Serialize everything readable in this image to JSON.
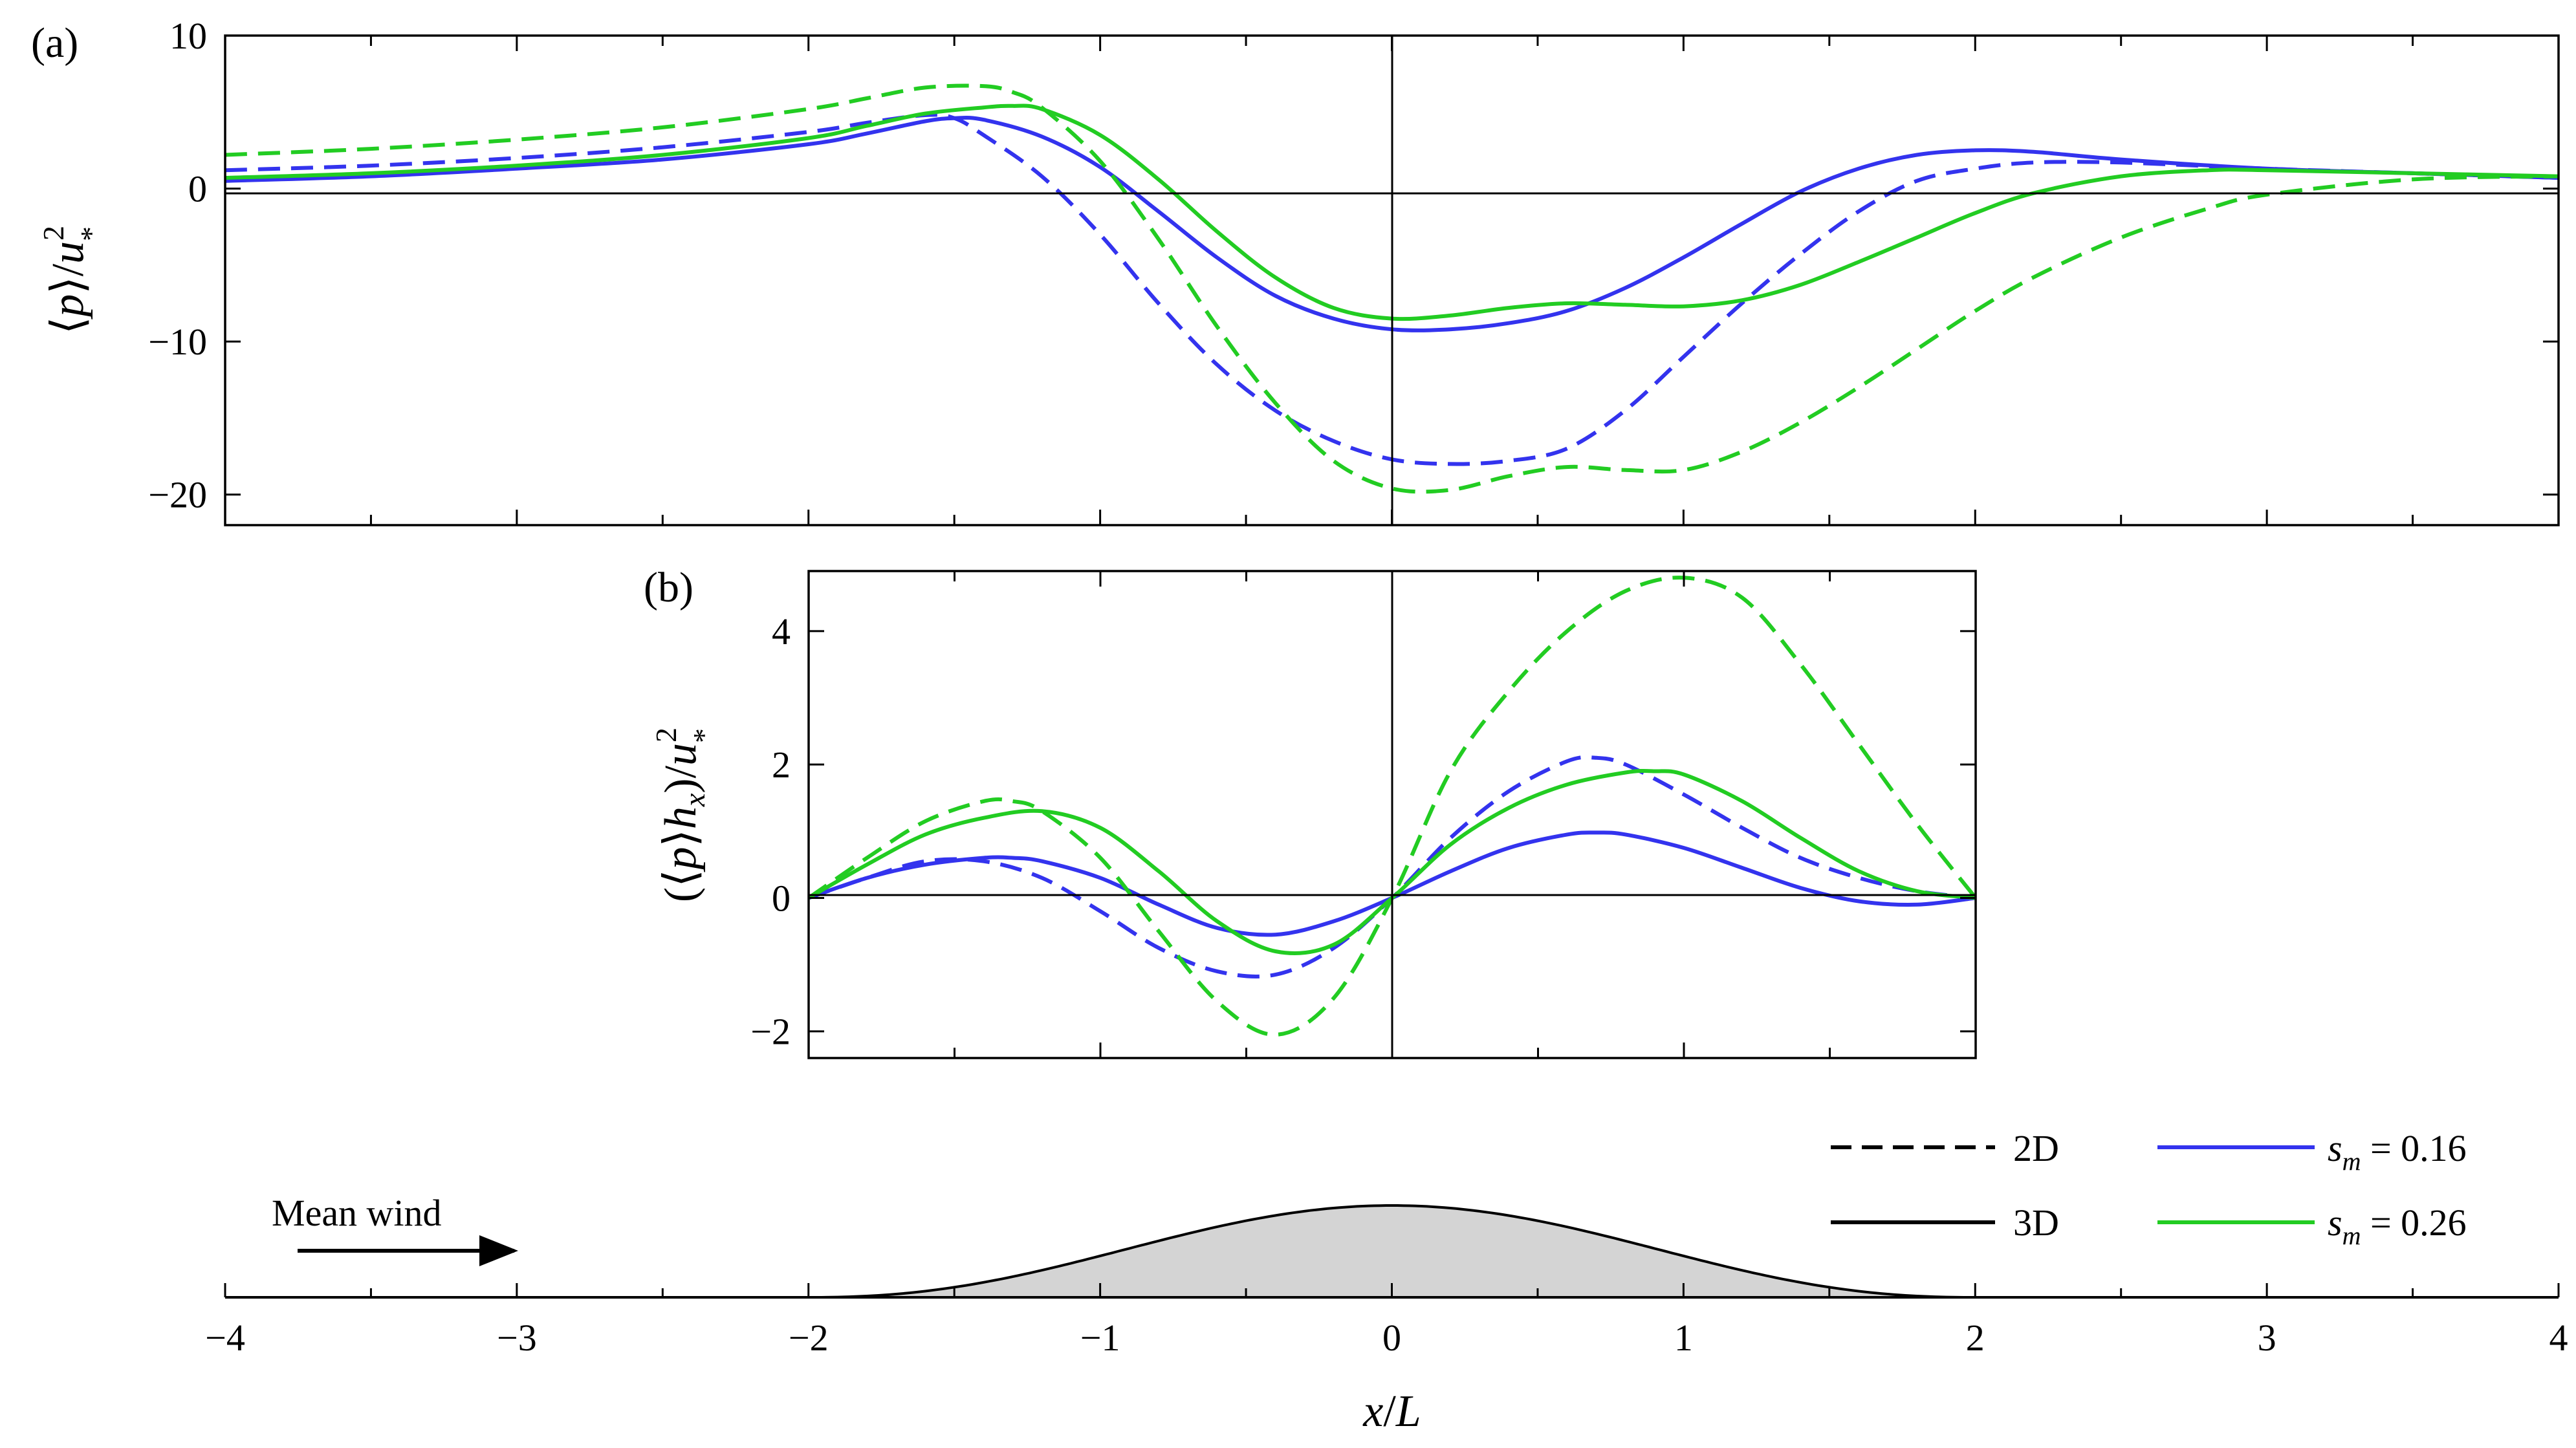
{
  "chart_data": [
    {
      "type": "line",
      "panel": "(a)",
      "xlabel": "x/L",
      "ylabel": "⟨p⟩/u*²",
      "xlim": [
        -4,
        4
      ],
      "ylim": [
        -22,
        10
      ],
      "yticks": [
        10,
        0,
        -10,
        -20
      ],
      "ytick_labels": [
        "10",
        "0",
        "−10",
        "−20"
      ],
      "series": [
        {
          "name": "2D, s_m = 0.16",
          "style": "dashed",
          "color": "#3333ee",
          "x": [
            -4,
            -3.5,
            -3,
            -2.5,
            -2,
            -1.8,
            -1.6,
            -1.5,
            -1.4,
            -1.2,
            -1,
            -0.8,
            -0.6,
            -0.4,
            -0.2,
            0,
            0.2,
            0.4,
            0.6,
            0.8,
            1,
            1.2,
            1.4,
            1.6,
            1.8,
            2,
            2.2,
            2.5,
            3,
            3.5,
            4
          ],
          "y": [
            1.2,
            1.5,
            2.0,
            2.7,
            3.7,
            4.3,
            4.8,
            4.6,
            3.5,
            0.8,
            -3.0,
            -7.5,
            -11.5,
            -14.5,
            -16.5,
            -17.7,
            -18.0,
            -17.8,
            -17.0,
            -14.5,
            -11.0,
            -7.5,
            -4.3,
            -1.5,
            0.5,
            1.3,
            1.7,
            1.7,
            1.3,
            1.0,
            0.7
          ]
        },
        {
          "name": "3D, s_m = 0.16",
          "style": "solid",
          "color": "#3333ee",
          "x": [
            -4,
            -3.5,
            -3,
            -2.5,
            -2,
            -1.8,
            -1.6,
            -1.5,
            -1.4,
            -1.2,
            -1,
            -0.8,
            -0.6,
            -0.4,
            -0.2,
            0,
            0.2,
            0.4,
            0.6,
            0.8,
            1,
            1.2,
            1.4,
            1.6,
            1.8,
            2,
            2.2,
            2.5,
            3,
            3.5,
            4
          ],
          "y": [
            0.5,
            0.8,
            1.3,
            1.9,
            2.9,
            3.6,
            4.4,
            4.6,
            4.5,
            3.4,
            1.4,
            -1.5,
            -4.5,
            -7.0,
            -8.5,
            -9.2,
            -9.2,
            -8.8,
            -8.0,
            -6.5,
            -4.5,
            -2.3,
            -0.2,
            1.3,
            2.2,
            2.5,
            2.4,
            1.9,
            1.3,
            1.0,
            0.7
          ]
        },
        {
          "name": "2D, s_m = 0.26",
          "style": "dashed",
          "color": "#22cc22",
          "x": [
            -4,
            -3.5,
            -3,
            -2.5,
            -2,
            -1.8,
            -1.6,
            -1.4,
            -1.3,
            -1.2,
            -1,
            -0.8,
            -0.6,
            -0.4,
            -0.2,
            0,
            0.2,
            0.4,
            0.6,
            0.8,
            1,
            1.2,
            1.4,
            1.6,
            1.8,
            2,
            2.2,
            2.5,
            2.8,
            3,
            3.5,
            4
          ],
          "y": [
            2.2,
            2.6,
            3.2,
            4.0,
            5.2,
            5.9,
            6.6,
            6.7,
            6.3,
            5.3,
            1.8,
            -3.3,
            -9.0,
            -14.0,
            -17.8,
            -19.6,
            -19.7,
            -18.8,
            -18.2,
            -18.4,
            -18.4,
            -17.2,
            -15.3,
            -13.0,
            -10.5,
            -8.0,
            -5.8,
            -3.2,
            -1.3,
            -0.4,
            0.6,
            0.8
          ]
        },
        {
          "name": "3D, s_m = 0.26",
          "style": "solid",
          "color": "#22cc22",
          "x": [
            -4,
            -3.5,
            -3,
            -2.5,
            -2,
            -1.8,
            -1.6,
            -1.4,
            -1.3,
            -1.2,
            -1,
            -0.8,
            -0.6,
            -0.4,
            -0.2,
            0,
            0.2,
            0.4,
            0.6,
            0.8,
            1,
            1.2,
            1.4,
            1.6,
            1.8,
            2,
            2.2,
            2.5,
            2.8,
            3,
            3.5,
            4
          ],
          "y": [
            0.7,
            1.0,
            1.5,
            2.2,
            3.3,
            4.1,
            4.9,
            5.3,
            5.4,
            5.2,
            3.5,
            0.6,
            -2.8,
            -5.8,
            -7.8,
            -8.5,
            -8.3,
            -7.8,
            -7.5,
            -7.6,
            -7.7,
            -7.3,
            -6.3,
            -4.8,
            -3.2,
            -1.6,
            -0.3,
            0.8,
            1.2,
            1.2,
            1.0,
            0.8
          ]
        }
      ]
    },
    {
      "type": "line",
      "panel": "(b)",
      "xlabel": "x/L",
      "ylabel": "(⟨p⟩hₓ)/u*²",
      "xlim": [
        -2,
        2
      ],
      "ylim": [
        -2.4,
        4.9
      ],
      "yticks": [
        4,
        2,
        0,
        -2
      ],
      "ytick_labels": [
        "4",
        "2",
        "0",
        "−2"
      ],
      "series": [
        {
          "name": "2D, s_m = 0.16",
          "style": "dashed",
          "color": "#3333ee",
          "x": [
            -2,
            -1.8,
            -1.6,
            -1.4,
            -1.2,
            -1,
            -0.8,
            -0.6,
            -0.4,
            -0.2,
            0,
            0.2,
            0.4,
            0.6,
            0.7,
            0.8,
            1,
            1.2,
            1.4,
            1.6,
            1.8,
            2
          ],
          "y": [
            0,
            0.3,
            0.55,
            0.55,
            0.3,
            -0.2,
            -0.75,
            -1.1,
            -1.15,
            -0.75,
            0,
            0.9,
            1.6,
            2.05,
            2.1,
            2.0,
            1.55,
            1.05,
            0.6,
            0.3,
            0.1,
            0
          ]
        },
        {
          "name": "3D, s_m = 0.16",
          "style": "solid",
          "color": "#3333ee",
          "x": [
            -2,
            -1.8,
            -1.6,
            -1.4,
            -1.3,
            -1.2,
            -1,
            -0.8,
            -0.6,
            -0.4,
            -0.2,
            0,
            0.2,
            0.4,
            0.6,
            0.7,
            0.8,
            1,
            1.2,
            1.4,
            1.6,
            1.8,
            2
          ],
          "y": [
            0,
            0.3,
            0.5,
            0.6,
            0.6,
            0.55,
            0.3,
            -0.1,
            -0.45,
            -0.55,
            -0.35,
            0,
            0.4,
            0.75,
            0.95,
            0.98,
            0.95,
            0.75,
            0.45,
            0.15,
            -0.05,
            -0.1,
            0
          ]
        },
        {
          "name": "2D, s_m = 0.26",
          "style": "dashed",
          "color": "#22cc22",
          "x": [
            -2,
            -1.8,
            -1.6,
            -1.4,
            -1.3,
            -1.2,
            -1,
            -0.8,
            -0.6,
            -0.4,
            -0.2,
            0,
            0.2,
            0.4,
            0.6,
            0.8,
            1,
            1.2,
            1.4,
            1.6,
            1.8,
            2
          ],
          "y": [
            0,
            0.6,
            1.15,
            1.45,
            1.45,
            1.3,
            0.6,
            -0.5,
            -1.55,
            -2.05,
            -1.5,
            0,
            1.9,
            3.1,
            4.0,
            4.6,
            4.8,
            4.5,
            3.5,
            2.3,
            1.1,
            0
          ]
        },
        {
          "name": "3D, s_m = 0.26",
          "style": "solid",
          "color": "#22cc22",
          "x": [
            -2,
            -1.8,
            -1.6,
            -1.4,
            -1.2,
            -1,
            -0.8,
            -0.6,
            -0.4,
            -0.2,
            0,
            0.2,
            0.4,
            0.6,
            0.8,
            0.9,
            1,
            1.2,
            1.4,
            1.6,
            1.8,
            2
          ],
          "y": [
            0,
            0.5,
            0.95,
            1.2,
            1.3,
            1.05,
            0.4,
            -0.35,
            -0.8,
            -0.7,
            0,
            0.8,
            1.35,
            1.7,
            1.88,
            1.9,
            1.85,
            1.45,
            0.9,
            0.4,
            0.1,
            0
          ]
        }
      ]
    },
    {
      "type": "area",
      "panel": "topography",
      "xlim": [
        -4,
        4
      ],
      "xticks": [
        -4,
        -3,
        -2,
        -1,
        0,
        1,
        2,
        3,
        4
      ],
      "xtick_labels": [
        "−4",
        "−3",
        "−2",
        "−1",
        "0",
        "1",
        "2",
        "3",
        "4"
      ],
      "hill_halfwidth": 2,
      "annotation": "Mean wind"
    }
  ],
  "legend": {
    "entries": [
      {
        "style": "dashed",
        "color": "#000000",
        "label": "2D"
      },
      {
        "style": "solid",
        "color": "#000000",
        "label": "3D"
      },
      {
        "style": "solid",
        "color": "#3333ee",
        "label_var": "s",
        "label_sub": "m",
        "label_value": " = 0.16"
      },
      {
        "style": "solid",
        "color": "#22cc22",
        "label_var": "s",
        "label_sub": "m",
        "label_value": " = 0.26"
      }
    ]
  },
  "labels": {
    "panel_a": "(a)",
    "panel_b": "(b)",
    "xlabel": "x/L",
    "ylabel_a": "⟨p⟩/u*²",
    "ylabel_b": "(⟨p⟩hₓ)/u*²",
    "wind": "Mean wind"
  }
}
